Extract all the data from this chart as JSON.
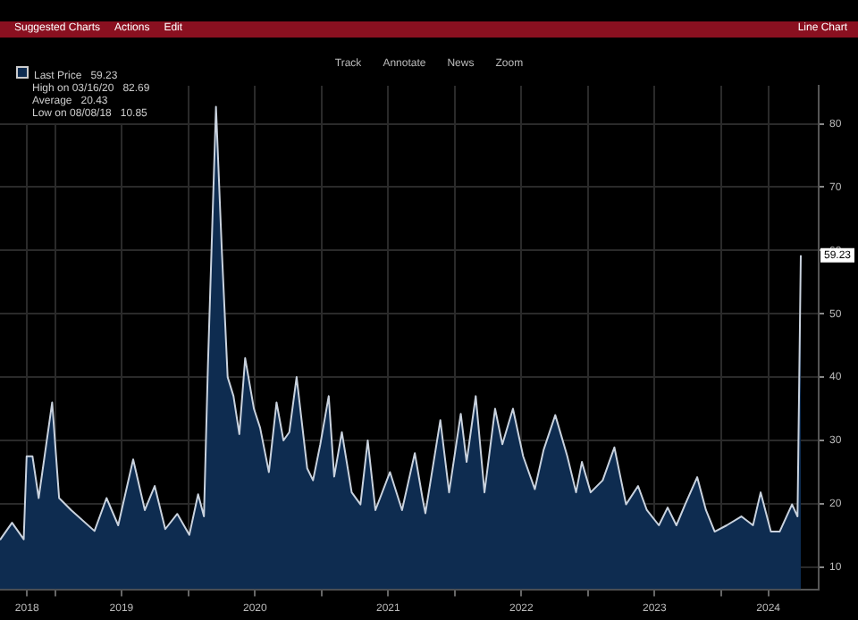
{
  "chart_data": {
    "type": "area",
    "legend": "top left",
    "grid": true,
    "marker": "none",
    "xlim": [
      "2018-08-02",
      "2024-09-23"
    ],
    "ylim": [
      6.5,
      86
    ],
    "xticks": [
      {
        "value": "2018-10-15",
        "label": "2018"
      },
      {
        "value": "2019-01-01",
        "label": null
      },
      {
        "value": "2019-07-01",
        "label": "2019"
      },
      {
        "value": "2020-01-01",
        "label": null
      },
      {
        "value": "2020-07-01",
        "label": "2020"
      },
      {
        "value": "2021-01-01",
        "label": null
      },
      {
        "value": "2021-07-01",
        "label": "2021"
      },
      {
        "value": "2022-01-01",
        "label": null
      },
      {
        "value": "2022-07-01",
        "label": "2022"
      },
      {
        "value": "2023-01-01",
        "label": null
      },
      {
        "value": "2023-07-01",
        "label": "2023"
      },
      {
        "value": "2024-01-01",
        "label": null
      },
      {
        "value": "2024-05-08",
        "label": "2024"
      }
    ],
    "yticks": [
      10,
      20,
      30,
      40,
      50,
      60,
      70,
      80
    ],
    "series": [
      {
        "name": "Last Price",
        "color": "#0e2c50",
        "x": [
          "2018-08-02",
          "2018-09-04",
          "2018-10-06",
          "2018-10-14",
          "2018-10-30",
          "2018-11-16",
          "2018-12-23",
          "2019-01-11",
          "2019-02-13",
          "2019-04-18",
          "2019-05-21",
          "2019-06-22",
          "2019-08-02",
          "2019-09-03",
          "2019-09-30",
          "2019-10-29",
          "2019-12-01",
          "2020-01-03",
          "2020-01-27",
          "2020-02-12",
          "2020-02-23",
          "2020-03-16",
          "2020-04-01",
          "2020-04-17",
          "2020-05-03",
          "2020-05-19",
          "2020-06-04",
          "2020-06-28",
          "2020-07-15",
          "2020-08-08",
          "2020-08-29",
          "2020-09-17",
          "2020-10-03",
          "2020-10-23",
          "2020-11-21",
          "2020-12-07",
          "2020-12-27",
          "2021-01-19",
          "2021-02-03",
          "2021-02-24",
          "2021-03-23",
          "2021-04-16",
          "2021-05-06",
          "2021-05-27",
          "2021-07-06",
          "2021-08-08",
          "2021-09-12",
          "2021-10-03",
          "2021-10-11",
          "2021-11-21",
          "2021-12-15",
          "2022-01-16",
          "2022-02-01",
          "2022-02-26",
          "2022-03-22",
          "2022-04-20",
          "2022-05-10",
          "2022-06-08",
          "2022-07-06",
          "2022-08-07",
          "2022-08-31",
          "2022-10-02",
          "2022-11-04",
          "2022-11-28",
          "2022-12-14",
          "2023-01-07",
          "2023-02-09",
          "2023-03-13",
          "2023-04-14",
          "2023-05-17",
          "2023-06-10",
          "2023-07-13",
          "2023-08-06",
          "2023-08-30",
          "2023-09-23",
          "2023-10-26",
          "2023-11-19",
          "2023-12-13",
          "2024-01-15",
          "2024-02-24",
          "2024-03-27",
          "2024-04-17",
          "2024-05-15",
          "2024-06-08",
          "2024-07-12",
          "2024-07-27",
          "2024-08-05"
        ],
        "values": [
          14.3,
          17,
          14.4,
          27.5,
          27.5,
          20.9,
          36,
          20.9,
          19,
          15.7,
          20.9,
          16.6,
          27,
          19,
          22.8,
          16,
          18.4,
          15.1,
          21.5,
          18,
          42,
          82.69,
          60,
          40,
          37,
          31,
          43,
          35,
          32,
          25,
          36,
          30,
          31.3,
          40,
          25.6,
          23.7,
          29.4,
          37,
          24.3,
          31.3,
          21.8,
          19.9,
          30,
          19,
          25,
          19,
          28,
          20.9,
          18.5,
          33.2,
          21.8,
          34.2,
          26.6,
          37,
          21.8,
          35,
          29.4,
          35,
          27.5,
          22.3,
          28.5,
          34,
          27.5,
          21.8,
          26.6,
          21.8,
          23.7,
          28.9,
          19.9,
          22.8,
          19,
          16.6,
          19.4,
          16.6,
          19.9,
          24.2,
          19,
          15.6,
          16.6,
          18,
          16.6,
          21.8,
          15.6,
          15.6,
          19.9,
          18,
          59.23
        ]
      }
    ],
    "annotations": [
      "High on 03/16/20   82.69",
      "Average   20.43",
      "Low on 08/08/18   10.85",
      "Suggested Charts",
      "Actions",
      "Edit",
      "Line Chart",
      "Track",
      "Annotate",
      "News",
      "Zoom",
      {
        "text": "59.23",
        "x": "2024-08-05",
        "y": 59.23
      }
    ]
  }
}
